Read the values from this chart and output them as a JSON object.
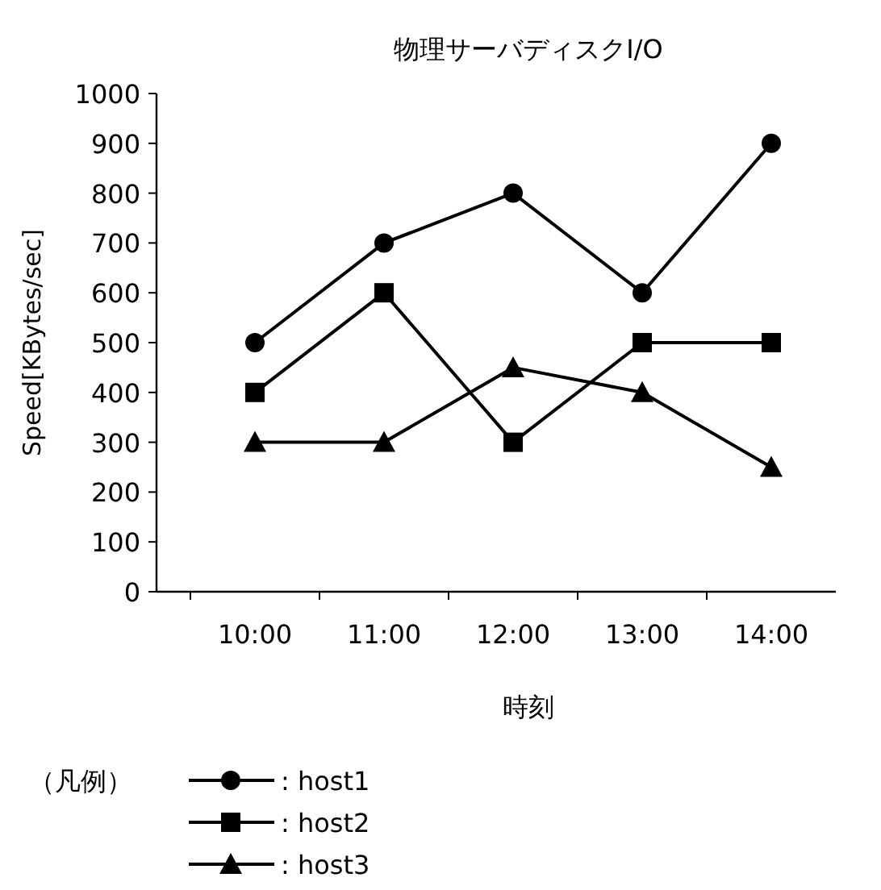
{
  "chart_data": {
    "type": "line",
    "title": "物理サーバディスクI/O",
    "xlabel": "時刻",
    "ylabel": "Speed[KBytes/sec]",
    "legend_title": "（凡例）",
    "legend": "bottom left",
    "grid": false,
    "categories": [
      "10:00",
      "11:00",
      "12:00",
      "13:00",
      "14:00"
    ],
    "ylim": [
      0,
      1000
    ],
    "yticks": [
      0,
      100,
      200,
      300,
      400,
      500,
      600,
      700,
      800,
      900,
      1000
    ],
    "line_style": "solid",
    "series": [
      {
        "name": ": host1",
        "color": "#000000",
        "marker": "circle",
        "values": [
          500,
          700,
          800,
          600,
          900
        ]
      },
      {
        "name": ": host2",
        "color": "#000000",
        "marker": "square",
        "values": [
          400,
          600,
          300,
          500,
          500
        ]
      },
      {
        "name": ": host3",
        "color": "#000000",
        "marker": "triangle",
        "values": [
          300,
          300,
          450,
          400,
          250
        ]
      }
    ]
  }
}
